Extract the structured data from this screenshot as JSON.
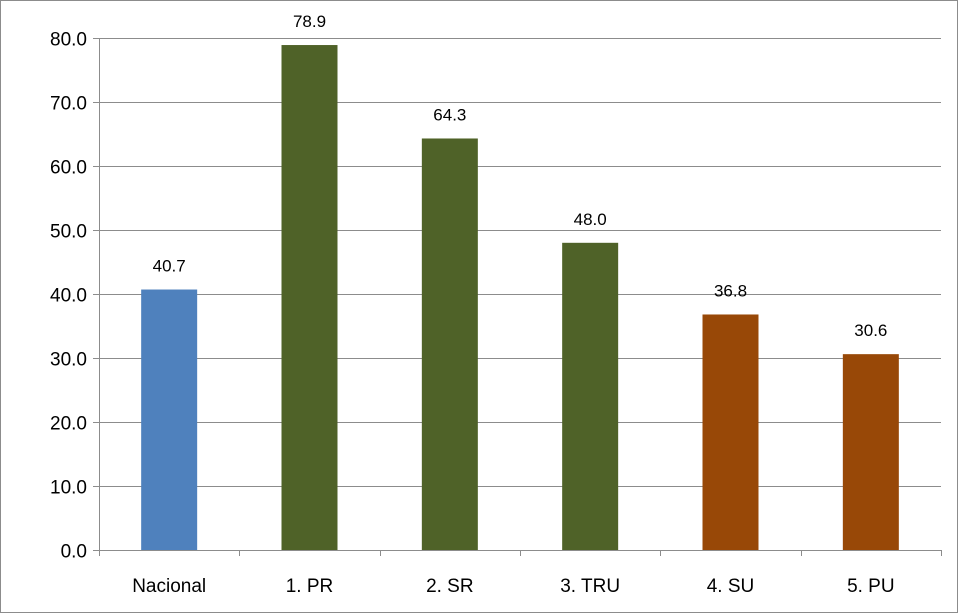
{
  "chart_data": {
    "type": "bar",
    "categories": [
      "Nacional",
      "1. PR",
      "2. SR",
      "3. TRU",
      "4. SU",
      "5. PU"
    ],
    "values": [
      40.7,
      78.9,
      64.3,
      48.0,
      36.8,
      30.6
    ],
    "data_labels": [
      "40.7",
      "78.9",
      "64.3",
      "48.0",
      "36.8",
      "30.6"
    ],
    "bar_colors": [
      "#4f81bd",
      "#4f6228",
      "#4f6228",
      "#4f6228",
      "#984807",
      "#984807"
    ],
    "y_ticks": [
      0,
      10,
      20,
      30,
      40,
      50,
      60,
      70,
      80
    ],
    "y_tick_labels": [
      "0.0",
      "10.0",
      "20.0",
      "30.0",
      "40.0",
      "50.0",
      "60.0",
      "70.0",
      "80.0"
    ],
    "ylim": [
      0,
      80
    ],
    "grid": true,
    "legend": "none",
    "title": "",
    "xlabel": "",
    "ylabel": ""
  }
}
